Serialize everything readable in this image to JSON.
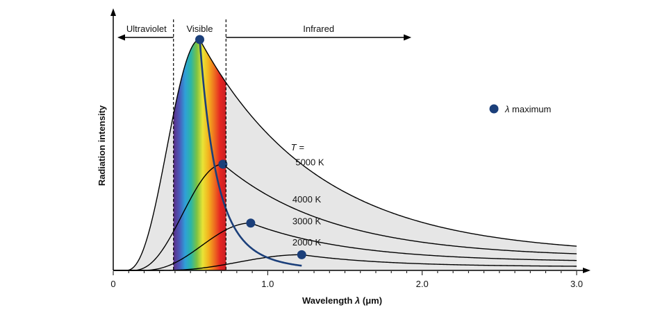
{
  "chart_data": {
    "type": "line",
    "title": "",
    "xlabel": "Wavelength λ (μm)",
    "xlabel_parts": {
      "main": "Wavelength ",
      "symbol": "λ",
      "units": " (μm)"
    },
    "ylabel": "Radiation intensity",
    "xlim": [
      0,
      3.0
    ],
    "ylim": [
      0,
      1.0
    ],
    "x_ticks": [
      {
        "value": 0,
        "label": "0"
      },
      {
        "value": 1.0,
        "label": "1.0"
      },
      {
        "value": 2.0,
        "label": "2.0"
      },
      {
        "value": 3.0,
        "label": "3.0"
      }
    ],
    "minor_tick_step": 0.1,
    "regions": [
      {
        "name": "ultraviolet",
        "label": "Ultraviolet",
        "range": [
          0,
          0.39
        ],
        "arrow": "left"
      },
      {
        "name": "visible",
        "label": "Visible",
        "range": [
          0.39,
          0.73
        ]
      },
      {
        "name": "infrared",
        "label": "Infrared",
        "range": [
          0.73,
          1.93
        ],
        "arrow": "right"
      }
    ],
    "temperature_prefix": "T =",
    "series": [
      {
        "name": "5000 K",
        "temperature_K": 5000,
        "peak_x": 0.56,
        "peak_y": 1.0,
        "onset": 0.08,
        "tail_y": 0.105
      },
      {
        "name": "4000 K",
        "temperature_K": 4000,
        "peak_x": 0.71,
        "peak_y": 0.46,
        "onset": 0.12,
        "tail_y": 0.072
      },
      {
        "name": "3000 K",
        "temperature_K": 3000,
        "peak_x": 0.89,
        "peak_y": 0.205,
        "onset": 0.18,
        "tail_y": 0.043
      },
      {
        "name": "2000 K",
        "temperature_K": 2000,
        "peak_x": 1.22,
        "peak_y": 0.068,
        "onset": 0.3,
        "tail_y": 0.018
      }
    ],
    "lambda_max_points": [
      {
        "x": 0.56,
        "y": 1.0
      },
      {
        "x": 0.71,
        "y": 0.46
      },
      {
        "x": 0.89,
        "y": 0.205
      },
      {
        "x": 1.22,
        "y": 0.068
      }
    ],
    "legend": {
      "symbol": "λ",
      "label": " maximum",
      "placement": "right"
    },
    "colors": {
      "curve": "#000000",
      "fill": "#e6e6e6",
      "lambda_max": "#1b3f7a",
      "axis": "#000000",
      "spectrum": [
        "#5b2d86",
        "#4b57b8",
        "#2fa0d8",
        "#2bb6a6",
        "#7cc242",
        "#e9e436",
        "#f3b21e",
        "#ee6f20",
        "#e52521",
        "#c81f24"
      ]
    }
  }
}
